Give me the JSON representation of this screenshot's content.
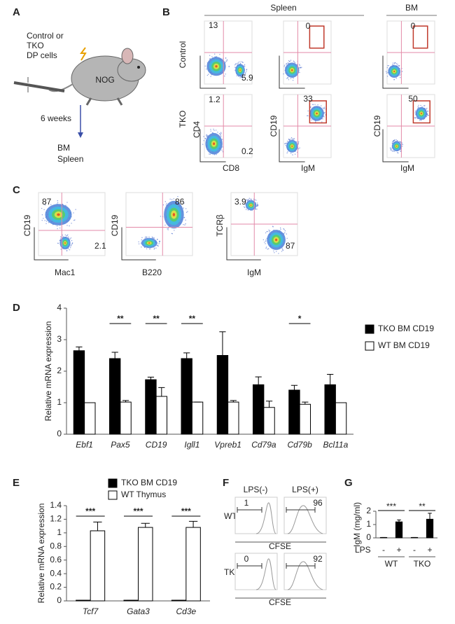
{
  "figure": {
    "panel_labels": [
      "A",
      "B",
      "C",
      "D",
      "E",
      "F",
      "G"
    ],
    "a": {
      "cell_lines": [
        "Control  or",
        "TKO",
        "DP cells"
      ],
      "mouse": "NOG",
      "time": "6 weeks",
      "organs": [
        "BM",
        "Spleen"
      ]
    },
    "b": {
      "groups": [
        "Spleen",
        "BM"
      ],
      "rows": [
        "Control",
        "TKO"
      ],
      "axis_labels": {
        "cd4": "CD4",
        "cd8": "CD8",
        "cd19": "CD19",
        "igm": "IgM"
      },
      "values": {
        "control": [
          13,
          5.9,
          0,
          0
        ],
        "tko": [
          1.2,
          0.2,
          33,
          50
        ]
      }
    },
    "c": {
      "axis_labels": [
        "CD19",
        "Mac1",
        "CD19",
        "B220",
        "TCRβ",
        "IgM"
      ],
      "values": [
        87,
        2.1,
        86,
        3.9,
        87
      ]
    },
    "f": {
      "conditions": [
        "LPS(-)",
        "LPS(+)"
      ],
      "rows": [
        "WT",
        "TKO"
      ],
      "axis_label": "CFSE",
      "values": [
        [
          1,
          96
        ],
        [
          0,
          92
        ]
      ]
    }
  },
  "chart_data": [
    {
      "type": "bar",
      "y_label": "Relative mRNA expression",
      "categories": [
        "Ebf1",
        "Pax5",
        "CD19",
        "Igll1",
        "Vpreb1",
        "Cd79a",
        "Cd79b",
        "Bcl11a"
      ],
      "series": [
        {
          "name": "TKO BM CD19",
          "color": "#000000",
          "values": [
            2.65,
            2.4,
            1.73,
            2.4,
            2.5,
            1.57,
            1.4,
            1.57
          ],
          "errors": [
            0.12,
            0.2,
            0.08,
            0.18,
            0.75,
            0.25,
            0.15,
            0.33
          ]
        },
        {
          "name": "WT BM CD19",
          "color": "#ffffff",
          "values": [
            1.0,
            1.02,
            1.2,
            1.02,
            1.02,
            0.85,
            0.95,
            1.0
          ],
          "errors": [
            0,
            0.05,
            0.28,
            0,
            0.05,
            0.2,
            0.07,
            0
          ]
        }
      ],
      "significance": [
        null,
        "**",
        "**",
        "**",
        null,
        null,
        "*",
        null
      ],
      "ylim": [
        0,
        4
      ],
      "yticks": [
        0,
        1,
        2,
        3,
        4
      ]
    },
    {
      "type": "bar",
      "y_label": "Relative mRNA expression",
      "categories": [
        "Tcf7",
        "Gata3",
        "Cd3e"
      ],
      "series": [
        {
          "name": "TKO BM CD19",
          "color": "#000000",
          "values": [
            0.01,
            0.01,
            0.01
          ],
          "errors": [
            0,
            0,
            0
          ]
        },
        {
          "name": "WT Thymus",
          "color": "#ffffff",
          "values": [
            1.03,
            1.08,
            1.08
          ],
          "errors": [
            0.13,
            0.06,
            0.09
          ]
        }
      ],
      "significance": [
        "***",
        "***",
        "***"
      ],
      "ylim": [
        0,
        1.4
      ],
      "yticks": [
        0,
        0.2,
        0.4,
        0.6,
        0.8,
        1,
        1.2,
        1.4
      ]
    },
    {
      "type": "bar",
      "y_label": "IgM (mg/ml)",
      "x_label": "LPS",
      "categories": [
        "-",
        "+",
        "-",
        "+"
      ],
      "groups": [
        "WT",
        "TKO"
      ],
      "series": [
        {
          "color": "#000000",
          "values": [
            0.03,
            1.2,
            0.03,
            1.4
          ],
          "errors": [
            0,
            0.15,
            0,
            0.45
          ]
        }
      ],
      "significance": [
        "***",
        "**"
      ],
      "ylim": [
        0,
        2
      ],
      "yticks": [
        0,
        1,
        2
      ]
    }
  ]
}
